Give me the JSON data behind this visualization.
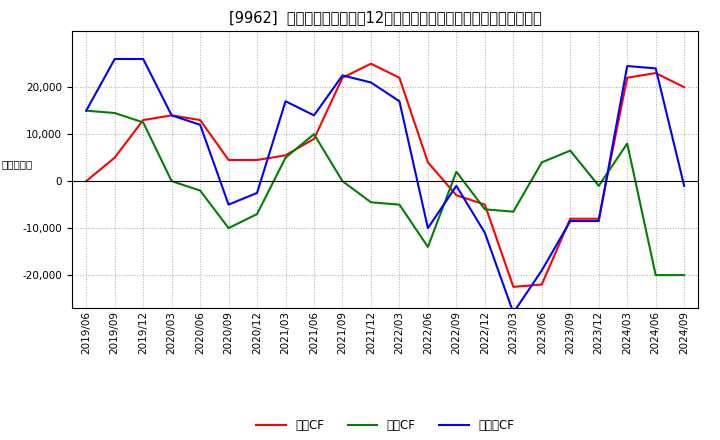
{
  "title": "[9962]  キャッシュフローの12か月移動合計の対前年同期増減額の推移",
  "ylabel": "（百万円）",
  "background_color": "#ffffff",
  "plot_bg_color": "#ffffff",
  "grid_color": "#aaaaaa",
  "ylim": [
    -27000,
    32000
  ],
  "yticks": [
    -20000,
    -10000,
    0,
    10000,
    20000
  ],
  "x_labels": [
    "2019/06",
    "2019/09",
    "2019/12",
    "2020/03",
    "2020/06",
    "2020/09",
    "2020/12",
    "2021/03",
    "2021/06",
    "2021/09",
    "2021/12",
    "2022/03",
    "2022/06",
    "2022/09",
    "2022/12",
    "2023/03",
    "2023/06",
    "2023/09",
    "2023/12",
    "2024/03",
    "2024/06",
    "2024/09"
  ],
  "eiyo_cf": [
    0,
    5000,
    13000,
    14000,
    13000,
    4500,
    4500,
    5500,
    9000,
    22000,
    25000,
    22000,
    4000,
    -3000,
    -5000,
    -22500,
    -22000,
    -8000,
    -8000,
    22000,
    23000,
    20000
  ],
  "toshi_cf": [
    15000,
    14500,
    12500,
    0,
    -2000,
    -10000,
    -7000,
    5000,
    10000,
    0,
    -4500,
    -5000,
    -14000,
    2000,
    -6000,
    -6500,
    4000,
    6500,
    -1000,
    8000,
    -20000,
    -20000
  ],
  "free_cf": [
    15000,
    26000,
    26000,
    14000,
    12000,
    -5000,
    -2500,
    17000,
    14000,
    22500,
    21000,
    17000,
    -10000,
    -1000,
    -11000,
    -28000,
    -19000,
    -8500,
    -8500,
    24500,
    24000,
    -1000
  ],
  "line_colors": {
    "eiyo": "#ff0000",
    "toshi": "#008000",
    "free": "#0000ff"
  },
  "legend_labels": {
    "eiyo": "営業CF",
    "toshi": "投資CF",
    "free": "フリーCF"
  },
  "title_fontsize": 10.5,
  "axis_fontsize": 7.5,
  "legend_fontsize": 8.5
}
